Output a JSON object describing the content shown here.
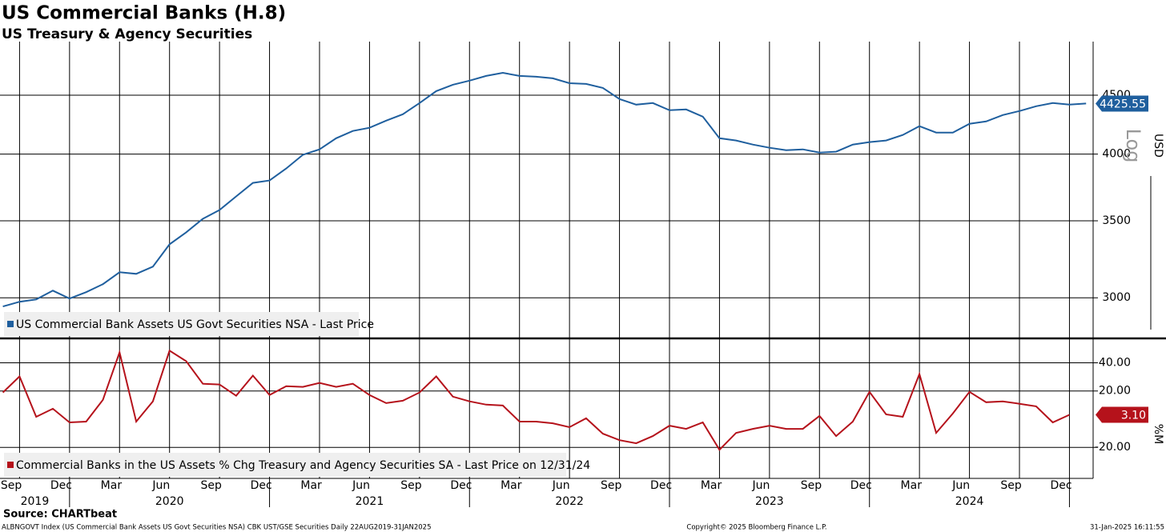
{
  "chart_data": [
    {
      "type": "line",
      "title": "US Commercial Banks (H.8)",
      "subtitle": "US Treasury & Agency Securities",
      "y_label": "USD",
      "scale_label": "Log",
      "log_scale": true,
      "grid": true,
      "legend": "lower left",
      "x": [
        "2019-08",
        "2019-09",
        "2019-10",
        "2019-11",
        "2019-12",
        "2020-01",
        "2020-02",
        "2020-03",
        "2020-04",
        "2020-05",
        "2020-06",
        "2020-07",
        "2020-08",
        "2020-09",
        "2020-10",
        "2020-11",
        "2020-12",
        "2021-01",
        "2021-02",
        "2021-03",
        "2021-04",
        "2021-05",
        "2021-06",
        "2021-07",
        "2021-08",
        "2021-09",
        "2021-10",
        "2021-11",
        "2021-12",
        "2022-01",
        "2022-02",
        "2022-03",
        "2022-04",
        "2022-05",
        "2022-06",
        "2022-07",
        "2022-08",
        "2022-09",
        "2022-10",
        "2022-11",
        "2022-12",
        "2023-01",
        "2023-02",
        "2023-03",
        "2023-04",
        "2023-05",
        "2023-06",
        "2023-07",
        "2023-08",
        "2023-09",
        "2023-10",
        "2023-11",
        "2023-12",
        "2024-01",
        "2024-02",
        "2024-03",
        "2024-04",
        "2024-05",
        "2024-06",
        "2024-07",
        "2024-08",
        "2024-09",
        "2024-10",
        "2024-11",
        "2024-12",
        "2025-01"
      ],
      "series": [
        {
          "name": "US Commercial Bank Assets US Govt Securities NSA - Last Price",
          "color": "#1f5f9e",
          "values": [
            2948,
            2976,
            2990,
            3043,
            2995,
            3034,
            3083,
            3157,
            3147,
            3193,
            3339,
            3420,
            3514,
            3576,
            3675,
            3776,
            3794,
            3886,
            3994,
            4038,
            4129,
            4189,
            4216,
            4277,
            4332,
            4430,
            4537,
            4596,
            4633,
            4677,
            4707,
            4677,
            4670,
            4655,
            4610,
            4603,
            4566,
            4466,
            4416,
            4430,
            4367,
            4374,
            4311,
            4129,
            4110,
            4077,
            4051,
            4031,
            4038,
            4012,
            4019,
            4077,
            4097,
            4110,
            4156,
            4230,
            4176,
            4176,
            4250,
            4270,
            4325,
            4360,
            4402,
            4430,
            4416,
            4425.55
          ]
        }
      ],
      "ylim": [
        2770,
        5010
      ],
      "yticks": [
        3000,
        3500,
        4000,
        4500
      ]
    },
    {
      "type": "line",
      "y_label": "%M",
      "grid": true,
      "legend": "lower left",
      "x": [
        "2019-08",
        "2019-09",
        "2019-10",
        "2019-11",
        "2019-12",
        "2020-01",
        "2020-02",
        "2020-03",
        "2020-04",
        "2020-05",
        "2020-06",
        "2020-07",
        "2020-08",
        "2020-09",
        "2020-10",
        "2020-11",
        "2020-12",
        "2021-01",
        "2021-02",
        "2021-03",
        "2021-04",
        "2021-05",
        "2021-06",
        "2021-07",
        "2021-08",
        "2021-09",
        "2021-10",
        "2021-11",
        "2021-12",
        "2022-01",
        "2022-02",
        "2022-03",
        "2022-04",
        "2022-05",
        "2022-06",
        "2022-07",
        "2022-08",
        "2022-09",
        "2022-10",
        "2022-11",
        "2022-12",
        "2023-01",
        "2023-02",
        "2023-03",
        "2023-04",
        "2023-05",
        "2023-06",
        "2023-07",
        "2023-08",
        "2023-09",
        "2023-10",
        "2023-11",
        "2023-12",
        "2024-01",
        "2024-02",
        "2024-03",
        "2024-04",
        "2024-05",
        "2024-06",
        "2024-07",
        "2024-08",
        "2024-09",
        "2024-10",
        "2024-11",
        "2024-12"
      ],
      "series": [
        {
          "name": "Commercial Banks in the US Assets % Chg Treasury and Agency Securities SA - Last Price on 12/31/24",
          "color": "#b5121b",
          "values": [
            18.9,
            30.3,
            1.7,
            7.4,
            -2.3,
            -1.7,
            13.7,
            47.4,
            -1.7,
            12.6,
            48.6,
            41.1,
            25.1,
            24.6,
            16.6,
            30.9,
            17.1,
            23.4,
            22.9,
            25.7,
            22.9,
            25.1,
            17.1,
            11.4,
            13.1,
            18.9,
            30.3,
            16.0,
            12.6,
            10.3,
            9.7,
            -1.7,
            -1.7,
            -2.9,
            -5.7,
            0.6,
            -10.3,
            -14.9,
            -17.1,
            -12.0,
            -4.6,
            -6.9,
            -2.3,
            -21.7,
            -9.7,
            -6.9,
            -4.6,
            -6.9,
            -6.9,
            2.3,
            -12.0,
            -1.7,
            19.4,
            3.4,
            1.7,
            32.0,
            -9.7,
            4.0,
            19.4,
            12.0,
            12.6,
            10.9,
            9.1,
            -2.3,
            3.1
          ],
          "last_value_label": "3.10"
        }
      ],
      "ylim": [
        -42,
        55
      ],
      "yticks": [
        {
          "value": 40,
          "label": "40.00"
        },
        {
          "value": 20,
          "label": "20.00"
        },
        {
          "value": -20,
          "label": "-20.00"
        }
      ],
      "xticks": [
        {
          "value": "2019-09",
          "label": "Sep"
        },
        {
          "value": "2019-12",
          "label": "Dec"
        },
        {
          "value": "2020-03",
          "label": "Mar"
        },
        {
          "value": "2020-06",
          "label": "Jun"
        },
        {
          "value": "2020-09",
          "label": "Sep"
        },
        {
          "value": "2020-12",
          "label": "Dec"
        },
        {
          "value": "2021-03",
          "label": "Mar"
        },
        {
          "value": "2021-06",
          "label": "Jun"
        },
        {
          "value": "2021-09",
          "label": "Sep"
        },
        {
          "value": "2021-12",
          "label": "Dec"
        },
        {
          "value": "2022-03",
          "label": "Mar"
        },
        {
          "value": "2022-06",
          "label": "Jun"
        },
        {
          "value": "2022-09",
          "label": "Sep"
        },
        {
          "value": "2022-12",
          "label": "Dec"
        },
        {
          "value": "2023-03",
          "label": "Mar"
        },
        {
          "value": "2023-06",
          "label": "Jun"
        },
        {
          "value": "2023-09",
          "label": "Sep"
        },
        {
          "value": "2023-12",
          "label": "Dec"
        },
        {
          "value": "2024-03",
          "label": "Mar"
        },
        {
          "value": "2024-06",
          "label": "Jun"
        },
        {
          "value": "2024-09",
          "label": "Sep"
        },
        {
          "value": "2024-12",
          "label": "Dec"
        }
      ],
      "year_labels": [
        "2019",
        "2020",
        "2021",
        "2022",
        "2023",
        "2024"
      ]
    }
  ],
  "source": "Source: CHARTbeat",
  "footer": {
    "left": "ALBNGOVT Index (US Commercial Bank Assets US Govt Securities NSA) CBK UST/GSE Securities  Daily 22AUG2019-31JAN2025",
    "center": "Copyright© 2025 Bloomberg Finance L.P.",
    "right": "31-Jan-2025 16:11:55"
  }
}
